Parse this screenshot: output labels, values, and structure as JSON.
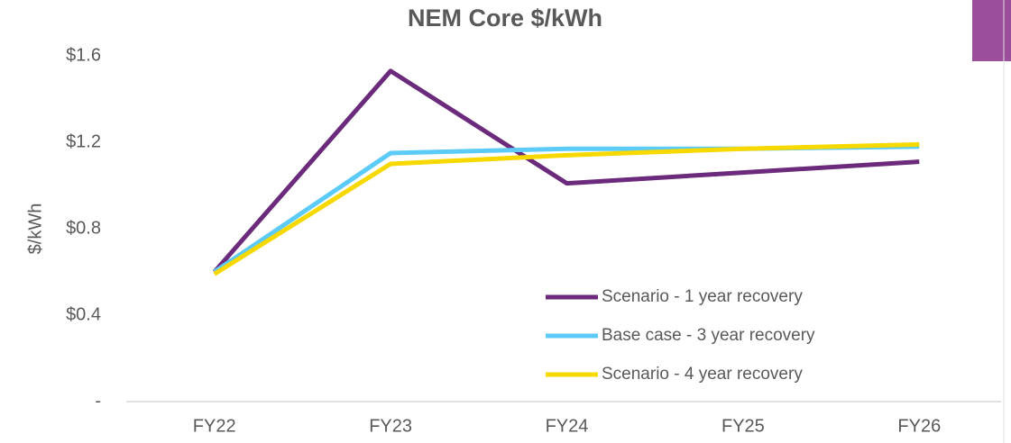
{
  "chart_data": {
    "type": "line",
    "title": "NEM Core $/kWh",
    "ylabel": "$/kWh",
    "categories": [
      "FY22",
      "FY23",
      "FY24",
      "FY25",
      "FY26"
    ],
    "series": [
      {
        "name": "Scenario - 1 year recovery",
        "color": "#6b2a7b",
        "values": [
          0.6,
          1.53,
          1.01,
          1.06,
          1.11
        ]
      },
      {
        "name": "Base case - 3 year recovery",
        "color": "#5ccbf7",
        "values": [
          0.6,
          1.15,
          1.17,
          1.17,
          1.18
        ]
      },
      {
        "name": "Scenario - 4 year recovery",
        "color": "#f7d900",
        "values": [
          0.59,
          1.1,
          1.14,
          1.17,
          1.19
        ]
      }
    ],
    "ylim": [
      0,
      1.6
    ],
    "yticks": [
      {
        "value": 0,
        "label": "-"
      },
      {
        "value": 0.4,
        "label": "$0.4"
      },
      {
        "value": 0.8,
        "label": "$0.8"
      },
      {
        "value": 1.2,
        "label": "$1.2"
      },
      {
        "value": 1.6,
        "label": "$1.6"
      }
    ],
    "grid": false,
    "legend_position": "lower right"
  }
}
